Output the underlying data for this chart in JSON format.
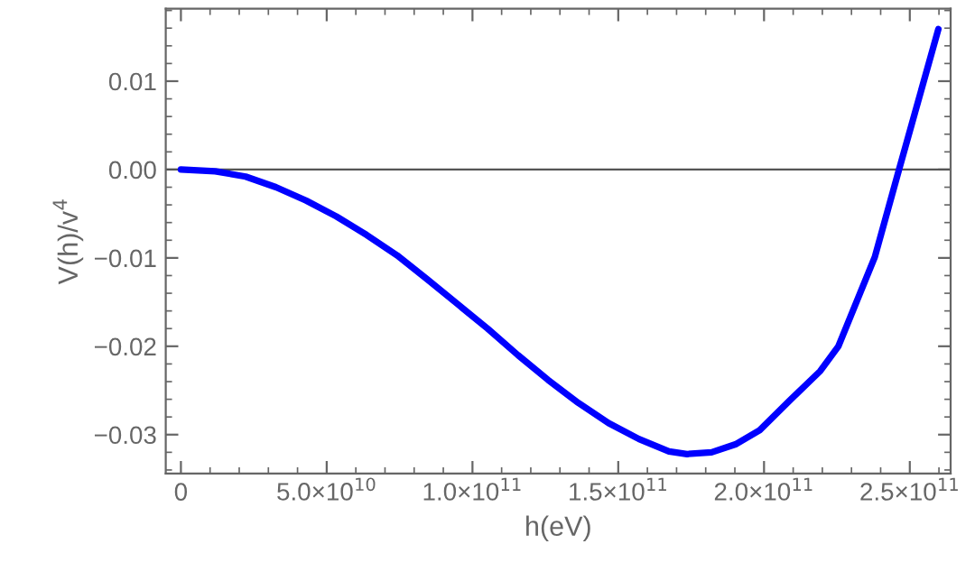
{
  "chart_data": {
    "type": "line",
    "xlabel": "h(eV)",
    "ylabel": "V(h)/v$^{4}$",
    "x": [
      0,
      11800000000.0,
      22200000000.0,
      32600000000.0,
      42900000000.0,
      53300000000.0,
      63700000000.0,
      74100000000.0,
      84400000000.0,
      94800000000.0,
      105200000000.0,
      115600000000.0,
      125900000000.0,
      136300000000.0,
      146700000000.0,
      157100000000.0,
      167400000000.0,
      173600000000.0,
      182000000000.0,
      190200000000.0,
      198500000000.0,
      208900000000.0,
      219300000000.0,
      225500000000.0,
      238000000000.0,
      246300000000.0,
      252500000000.0,
      259800000000.0
    ],
    "series": [
      {
        "color": "#0000ff",
        "values": [
          0,
          -0.0002,
          -0.0008,
          -0.002,
          -0.0035,
          -0.0053,
          -0.0074,
          -0.0097,
          -0.0124,
          -0.0152,
          -0.018,
          -0.021,
          -0.0238,
          -0.0264,
          -0.0287,
          -0.0305,
          -0.0319,
          -0.0322,
          -0.032,
          -0.0311,
          -0.0295,
          -0.0261,
          -0.0228,
          -0.02,
          -0.0099,
          0,
          0.0073,
          0.0159
        ]
      }
    ],
    "xlim": [
      -5200000000.0,
      264000000000.0
    ],
    "ylim": [
      -0.0344,
      0.0182
    ],
    "xticks": [
      0,
      {
        "value": 50000000000.0,
        "label": "5.0×10$^{10}$"
      },
      {
        "value": 100000000000.0,
        "label": "1.0×10$^{11}$"
      },
      {
        "value": 150000000000.0,
        "label": "1.5×10$^{11}$"
      },
      {
        "value": 200000000000.0,
        "label": "2.0×10$^{11}$"
      },
      {
        "value": 250000000000.0,
        "label": "2.5×10$^{11}$"
      }
    ],
    "yticks": [
      {
        "value": -0.03,
        "label": "−0.03"
      },
      {
        "value": -0.02,
        "label": "−0.02"
      },
      {
        "value": -0.01,
        "label": "−0.01"
      },
      {
        "value": 0,
        "label": "0.00"
      },
      {
        "value": 0.01,
        "label": "0.01"
      }
    ],
    "ref_lines": [
      {
        "axis": "y",
        "value": 0,
        "color": "#555555"
      }
    ],
    "grid": false,
    "legend": false,
    "marker": "none",
    "line_style": "solid"
  }
}
